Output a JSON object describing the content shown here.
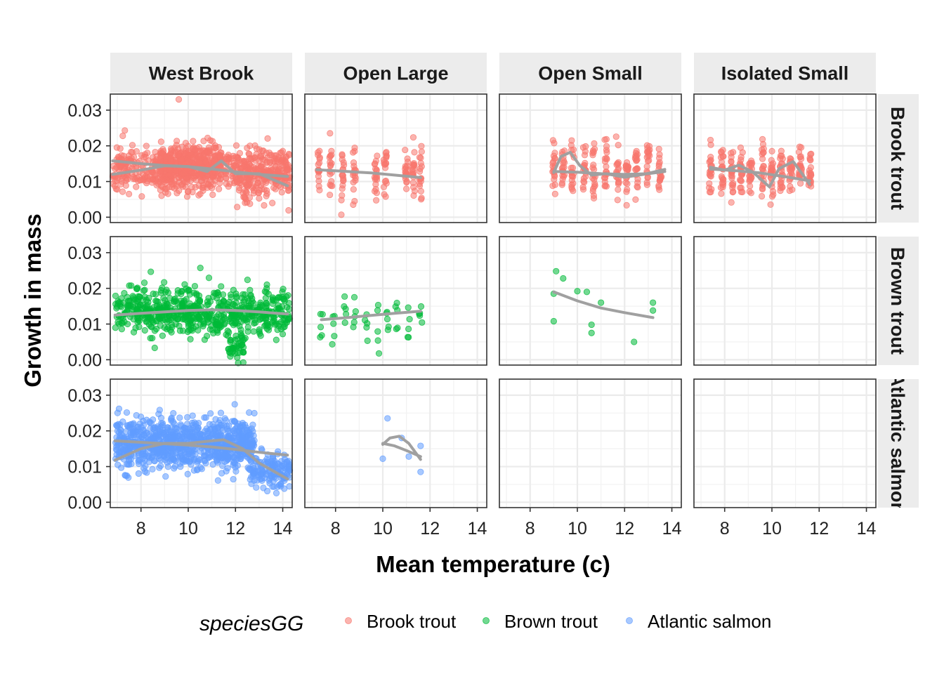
{
  "chart_data": {
    "type": "scatter",
    "xlabel": "Mean temperature (c)",
    "ylabel": "Growth in mass",
    "xlim": [
      6.7,
      14.4
    ],
    "ylim": [
      -0.0015,
      0.0345
    ],
    "x_ticks": [
      8,
      10,
      12,
      14
    ],
    "x_tick_labels": [
      "8",
      "10",
      "12",
      "14"
    ],
    "y_ticks": [
      0.0,
      0.01,
      0.02,
      0.03
    ],
    "y_tick_labels": [
      "0.00",
      "0.01",
      "0.02",
      "0.03"
    ],
    "grid": true,
    "legend": {
      "title": "speciesGG",
      "position": "bottom"
    },
    "columns": [
      "West Brook",
      "Open Large",
      "Open Small",
      "Isolated Small"
    ],
    "rows": [
      "Brook trout",
      "Brown trout",
      "Atlantic salmon"
    ],
    "row_strip_labels": [
      "Brook trout",
      "Brown trout",
      "Atlantic salmon"
    ],
    "series": [
      {
        "name": "Brook trout",
        "color": "#F8766D"
      },
      {
        "name": "Brown trout",
        "color": "#00BA38"
      },
      {
        "name": "Atlantic salmon",
        "color": "#619CFF"
      }
    ],
    "smooth_color": "#A0A0A0",
    "panels": [
      {
        "species": "Brook trout",
        "location": "West Brook",
        "clouds": [
          {
            "x": [
              6.8,
              14.3
            ],
            "center": 0.0135,
            "spread": 0.0038,
            "n": 600,
            "seed": 11
          },
          {
            "x": [
              8.8,
              11.4
            ],
            "center": 0.0148,
            "spread": 0.0042,
            "n": 300,
            "seed": 12
          },
          {
            "x": [
              12.0,
              14.3
            ],
            "center": 0.0105,
            "spread": 0.0045,
            "n": 120,
            "seed": 13
          }
        ],
        "extra_points": [
          {
            "x": 9.6,
            "y": 0.033
          }
        ],
        "smooths": [
          {
            "x": [
              6.8,
              8,
              9,
              10,
              11,
              12,
              13,
              14.2
            ],
            "y": [
              0.0158,
              0.015,
              0.0145,
              0.0142,
              0.0135,
              0.0127,
              0.012,
              0.0114
            ]
          },
          {
            "x": [
              6.8,
              8,
              9,
              10,
              10.8,
              11.4,
              12,
              13,
              14.2
            ],
            "y": [
              0.012,
              0.0132,
              0.0144,
              0.0142,
              0.0128,
              0.0158,
              0.0122,
              0.0122,
              0.0088
            ]
          }
        ]
      },
      {
        "species": "Brook trout",
        "location": "Open Large",
        "columns_x": [
          7.3,
          7.8,
          8.3,
          8.8,
          9.7,
          10.1,
          11.0,
          11.3,
          11.6
        ],
        "column_center": 0.0125,
        "column_spread": 0.0045,
        "column_n": 18,
        "seed": 21,
        "smooths": [
          {
            "x": [
              7.2,
              8.5,
              9.5,
              10.5,
              11.6
            ],
            "y": [
              0.0133,
              0.0128,
              0.0124,
              0.0118,
              0.0111
            ]
          }
        ]
      },
      {
        "species": "Brook trout",
        "location": "Open Small",
        "columns_x": [
          9.0,
          9.4,
          9.8,
          10.3,
          10.7,
          11.2,
          11.7,
          12.1,
          12.5,
          13.0,
          13.5
        ],
        "column_center": 0.0135,
        "column_spread": 0.0045,
        "column_n": 20,
        "seed": 31,
        "smooths": [
          {
            "x": [
              9.0,
              10,
              11,
              12,
              13,
              13.7
            ],
            "y": [
              0.0128,
              0.0126,
              0.0122,
              0.012,
              0.0122,
              0.0128
            ]
          },
          {
            "x": [
              9.0,
              9.3,
              9.7,
              10.1,
              10.6,
              11.2,
              12,
              12.8,
              13.7
            ],
            "y": [
              0.0125,
              0.017,
              0.0182,
              0.0145,
              0.0118,
              0.0122,
              0.0112,
              0.012,
              0.0134
            ]
          }
        ]
      },
      {
        "species": "Brook trout",
        "location": "Isolated Small",
        "columns_x": [
          7.4,
          7.9,
          8.3,
          8.7,
          9.1,
          9.6,
          10.0,
          10.4,
          10.8,
          11.2,
          11.6
        ],
        "column_center": 0.0125,
        "column_spread": 0.0042,
        "column_n": 22,
        "seed": 41,
        "smooths": [
          {
            "x": [
              7.4,
              8.5,
              9.5,
              10.5,
              11.6
            ],
            "y": [
              0.0135,
              0.013,
              0.0124,
              0.0114,
              0.0102
            ]
          },
          {
            "x": [
              7.4,
              8,
              8.6,
              9.2,
              9.9,
              10.3,
              10.9,
              11.6
            ],
            "y": [
              0.014,
              0.0132,
              0.0146,
              0.0126,
              0.0085,
              0.0136,
              0.0156,
              0.0092
            ]
          }
        ]
      },
      {
        "species": "Brown trout",
        "location": "West Brook",
        "clouds": [
          {
            "x": [
              6.9,
              14.3
            ],
            "center": 0.0135,
            "spread": 0.004,
            "n": 650,
            "seed": 51
          },
          {
            "x": [
              11.7,
              12.4
            ],
            "center": 0.0035,
            "spread": 0.0025,
            "n": 40,
            "seed": 52
          }
        ],
        "smooths": [
          {
            "x": [
              6.9,
              8,
              9,
              10,
              11,
              12,
              13,
              14.2
            ],
            "y": [
              0.0125,
              0.013,
              0.0134,
              0.0138,
              0.014,
              0.0138,
              0.0134,
              0.0128
            ]
          }
        ]
      },
      {
        "species": "Brown trout",
        "location": "Open Large",
        "columns_x": [
          7.4,
          7.9,
          8.4,
          8.8,
          9.3,
          9.8,
          10.2,
          10.6,
          11.1,
          11.6
        ],
        "column_center": 0.0115,
        "column_spread": 0.005,
        "column_n": 5,
        "seed": 61,
        "smooths": [
          {
            "x": [
              7.4,
              8.5,
              9.5,
              10.5,
              11.6
            ],
            "y": [
              0.0112,
              0.0118,
              0.0124,
              0.013,
              0.0136
            ]
          }
        ]
      },
      {
        "species": "Brown trout",
        "location": "Open Small",
        "points": [
          {
            "x": 9.0,
            "y": 0.0185
          },
          {
            "x": 9.0,
            "y": 0.0108
          },
          {
            "x": 9.1,
            "y": 0.0248
          },
          {
            "x": 9.4,
            "y": 0.0228
          },
          {
            "x": 10.0,
            "y": 0.0192
          },
          {
            "x": 10.4,
            "y": 0.019
          },
          {
            "x": 10.6,
            "y": 0.0098
          },
          {
            "x": 10.6,
            "y": 0.0075
          },
          {
            "x": 11.0,
            "y": 0.016
          },
          {
            "x": 12.4,
            "y": 0.005
          },
          {
            "x": 13.2,
            "y": 0.016
          },
          {
            "x": 13.2,
            "y": 0.0138
          }
        ],
        "smooths": [
          {
            "x": [
              9.0,
              10,
              11,
              12,
              13.2
            ],
            "y": [
              0.019,
              0.0165,
              0.0145,
              0.0132,
              0.0118
            ]
          }
        ]
      },
      {
        "species": "Brown trout",
        "location": "Isolated Small"
      },
      {
        "species": "Atlantic salmon",
        "location": "West Brook",
        "clouds": [
          {
            "x": [
              6.9,
              12.8
            ],
            "center": 0.0165,
            "spread": 0.0045,
            "n": 900,
            "seed": 81
          },
          {
            "x": [
              12.6,
              14.3
            ],
            "center": 0.0085,
            "spread": 0.003,
            "n": 150,
            "seed": 82
          }
        ],
        "smooths": [
          {
            "x": [
              6.9,
              8,
              9,
              10,
              11,
              12,
              13,
              14.2
            ],
            "y": [
              0.0172,
              0.0168,
              0.0164,
              0.016,
              0.0155,
              0.0148,
              0.014,
              0.0132
            ]
          },
          {
            "x": [
              6.9,
              8,
              9,
              10,
              11,
              11.5,
              12.3,
              13,
              14.2
            ],
            "y": [
              0.0118,
              0.015,
              0.0165,
              0.0165,
              0.0172,
              0.0175,
              0.015,
              0.011,
              0.0065
            ]
          }
        ]
      },
      {
        "species": "Atlantic salmon",
        "location": "Open Large",
        "points": [
          {
            "x": 10.0,
            "y": 0.0122
          },
          {
            "x": 10.2,
            "y": 0.0235
          },
          {
            "x": 10.8,
            "y": 0.018
          },
          {
            "x": 11.1,
            "y": 0.0128
          },
          {
            "x": 11.6,
            "y": 0.0158
          },
          {
            "x": 11.6,
            "y": 0.0085
          }
        ],
        "smooths": [
          {
            "x": [
              10.0,
              10.5,
              11.0,
              11.6
            ],
            "y": [
              0.0165,
              0.0158,
              0.0145,
              0.0128
            ]
          },
          {
            "x": [
              10.0,
              10.3,
              10.7,
              11.1,
              11.6
            ],
            "y": [
              0.0162,
              0.018,
              0.0185,
              0.0165,
              0.012
            ]
          }
        ]
      },
      {
        "species": "Atlantic salmon",
        "location": "Open Small"
      },
      {
        "species": "Atlantic salmon",
        "location": "Isolated Small"
      }
    ]
  }
}
